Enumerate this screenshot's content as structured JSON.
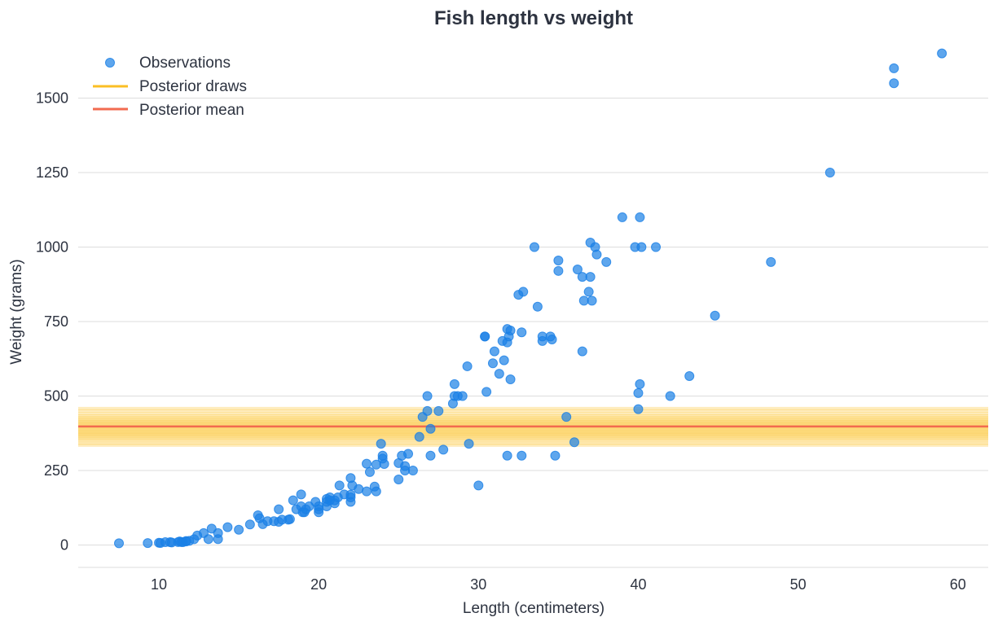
{
  "chart_data": {
    "type": "scatter",
    "title": "Fish length vs weight",
    "xlabel": "Length (centimeters)",
    "ylabel": "Weight (grams)",
    "xlim": [
      4.95,
      61.9
    ],
    "ylim": [
      -75,
      1720
    ],
    "x_ticks": [
      "10",
      "20",
      "30",
      "40",
      "50",
      "60"
    ],
    "y_ticks": [
      "0",
      "250",
      "500",
      "750",
      "1000",
      "1250",
      "1500"
    ],
    "grid": "horizontal",
    "legend": {
      "placement": "top-left",
      "entries": [
        "Observations",
        "Posterior draws",
        "Posterior mean"
      ]
    },
    "colors": {
      "observations": "#1a80e6",
      "posterior_draws": "#fbbf24",
      "posterior_mean": "#f26b50",
      "grid": "#dddddd",
      "text": "#2d3340"
    },
    "series": [
      {
        "name": "Observations",
        "kind": "scatter",
        "points": [
          [
            7.5,
            5.9
          ],
          [
            9.3,
            6.7
          ],
          [
            10.0,
            7.5
          ],
          [
            10.1,
            7.0
          ],
          [
            10.4,
            9.7
          ],
          [
            10.7,
            9.8
          ],
          [
            10.8,
            8.7
          ],
          [
            11.2,
            10.0
          ],
          [
            11.3,
            12.2
          ],
          [
            11.4,
            9.9
          ],
          [
            11.5,
            9.8
          ],
          [
            11.7,
            12.2
          ],
          [
            11.7,
            13.4
          ],
          [
            11.9,
            14.0
          ],
          [
            12.2,
            19.7
          ],
          [
            12.4,
            32.0
          ],
          [
            12.8,
            40.0
          ],
          [
            13.1,
            19.9
          ],
          [
            13.3,
            55.0
          ],
          [
            13.7,
            40.0
          ],
          [
            13.7,
            20.0
          ],
          [
            14.3,
            60.0
          ],
          [
            15.0,
            51.5
          ],
          [
            15.7,
            69.0
          ],
          [
            16.2,
            100.0
          ],
          [
            16.3,
            90.0
          ],
          [
            16.5,
            70.0
          ],
          [
            16.8,
            80.0
          ],
          [
            17.2,
            80.0
          ],
          [
            17.5,
            120.0
          ],
          [
            17.5,
            78.0
          ],
          [
            17.7,
            85.0
          ],
          [
            18.1,
            85.0
          ],
          [
            18.2,
            87.0
          ],
          [
            18.4,
            150.0
          ],
          [
            18.6,
            120.0
          ],
          [
            18.9,
            170.0
          ],
          [
            18.9,
            130.0
          ],
          [
            19.0,
            110.0
          ],
          [
            19.1,
            110.0
          ],
          [
            19.2,
            120.0
          ],
          [
            19.4,
            130.0
          ],
          [
            19.8,
            145.0
          ],
          [
            20.0,
            110.0
          ],
          [
            20.0,
            120.0
          ],
          [
            20.0,
            130.0
          ],
          [
            20.5,
            130.0
          ],
          [
            20.5,
            145.0
          ],
          [
            20.5,
            155.0
          ],
          [
            20.7,
            150.0
          ],
          [
            20.7,
            160.0
          ],
          [
            21.0,
            140.0
          ],
          [
            21.0,
            150.0
          ],
          [
            21.2,
            160.0
          ],
          [
            21.3,
            200.0
          ],
          [
            21.6,
            170.0
          ],
          [
            22.0,
            145.0
          ],
          [
            22.0,
            160.0
          ],
          [
            22.0,
            169.0
          ],
          [
            22.0,
            225.0
          ],
          [
            22.1,
            200.0
          ],
          [
            22.5,
            188.0
          ],
          [
            23.0,
            180.0
          ],
          [
            23.0,
            273.0
          ],
          [
            23.2,
            245.0
          ],
          [
            23.5,
            196.0
          ],
          [
            23.6,
            180.0
          ],
          [
            23.6,
            270.0
          ],
          [
            23.9,
            340.0
          ],
          [
            24.0,
            300.0
          ],
          [
            24.0,
            290.0
          ],
          [
            24.1,
            272.0
          ],
          [
            25.0,
            220.0
          ],
          [
            25.0,
            275.0
          ],
          [
            25.2,
            300.0
          ],
          [
            25.4,
            265.0
          ],
          [
            25.4,
            250.0
          ],
          [
            25.6,
            306.0
          ],
          [
            25.9,
            250.0
          ],
          [
            26.3,
            363.0
          ],
          [
            26.5,
            430.0
          ],
          [
            26.8,
            450.0
          ],
          [
            26.8,
            500.0
          ],
          [
            27.0,
            300.0
          ],
          [
            27.0,
            390.0
          ],
          [
            27.5,
            450.0
          ],
          [
            27.8,
            320.0
          ],
          [
            28.4,
            475.0
          ],
          [
            28.5,
            540.0
          ],
          [
            28.5,
            500.0
          ],
          [
            28.7,
            500.0
          ],
          [
            29.0,
            500.0
          ],
          [
            29.3,
            600.0
          ],
          [
            29.4,
            340.0
          ],
          [
            30.0,
            200.0
          ],
          [
            30.4,
            700.0
          ],
          [
            30.4,
            700.0
          ],
          [
            30.5,
            514.0
          ],
          [
            30.9,
            610.0
          ],
          [
            31.0,
            650.0
          ],
          [
            31.3,
            575.0
          ],
          [
            31.5,
            685.0
          ],
          [
            31.6,
            620.0
          ],
          [
            31.8,
            680.0
          ],
          [
            31.8,
            725.0
          ],
          [
            31.8,
            300.0
          ],
          [
            31.9,
            700.0
          ],
          [
            32.0,
            720.0
          ],
          [
            32.0,
            556.0
          ],
          [
            32.5,
            840.0
          ],
          [
            32.7,
            714.0
          ],
          [
            32.7,
            300.0
          ],
          [
            32.8,
            850.0
          ],
          [
            33.5,
            1000.0
          ],
          [
            33.7,
            800.0
          ],
          [
            34.0,
            685.0
          ],
          [
            34.0,
            700.0
          ],
          [
            34.5,
            700.0
          ],
          [
            34.6,
            690.0
          ],
          [
            34.8,
            300.0
          ],
          [
            35.0,
            920.0
          ],
          [
            35.0,
            955.0
          ],
          [
            35.5,
            430.0
          ],
          [
            36.0,
            345.0
          ],
          [
            36.2,
            925.0
          ],
          [
            36.5,
            900.0
          ],
          [
            36.5,
            650.0
          ],
          [
            36.6,
            820.0
          ],
          [
            36.9,
            850.0
          ],
          [
            37.0,
            900.0
          ],
          [
            37.0,
            1015.0
          ],
          [
            37.1,
            820.0
          ],
          [
            37.3,
            1000.0
          ],
          [
            37.4,
            975.0
          ],
          [
            38.0,
            950.0
          ],
          [
            39.0,
            1100.0
          ],
          [
            39.8,
            1000.0
          ],
          [
            40.0,
            510.0
          ],
          [
            40.0,
            456.0
          ],
          [
            40.1,
            540.0
          ],
          [
            40.1,
            1100.0
          ],
          [
            40.2,
            1000.0
          ],
          [
            41.1,
            1000.0
          ],
          [
            42.0,
            500.0
          ],
          [
            43.2,
            567.0
          ],
          [
            44.8,
            770.0
          ],
          [
            48.3,
            950.0
          ],
          [
            52.0,
            1250.0
          ],
          [
            56.0,
            1550.0
          ],
          [
            56.0,
            1600.0
          ],
          [
            59.0,
            1650.0
          ]
        ]
      },
      {
        "name": "Posterior draws",
        "kind": "horizontal-band",
        "values": [
          335,
          342,
          350,
          356,
          361,
          366,
          370,
          374,
          378,
          382,
          386,
          390,
          394,
          398,
          402,
          406,
          410,
          414,
          418,
          423,
          428,
          434,
          441,
          450,
          458
        ]
      },
      {
        "name": "Posterior mean",
        "kind": "horizontal-line",
        "value": 398
      }
    ]
  }
}
